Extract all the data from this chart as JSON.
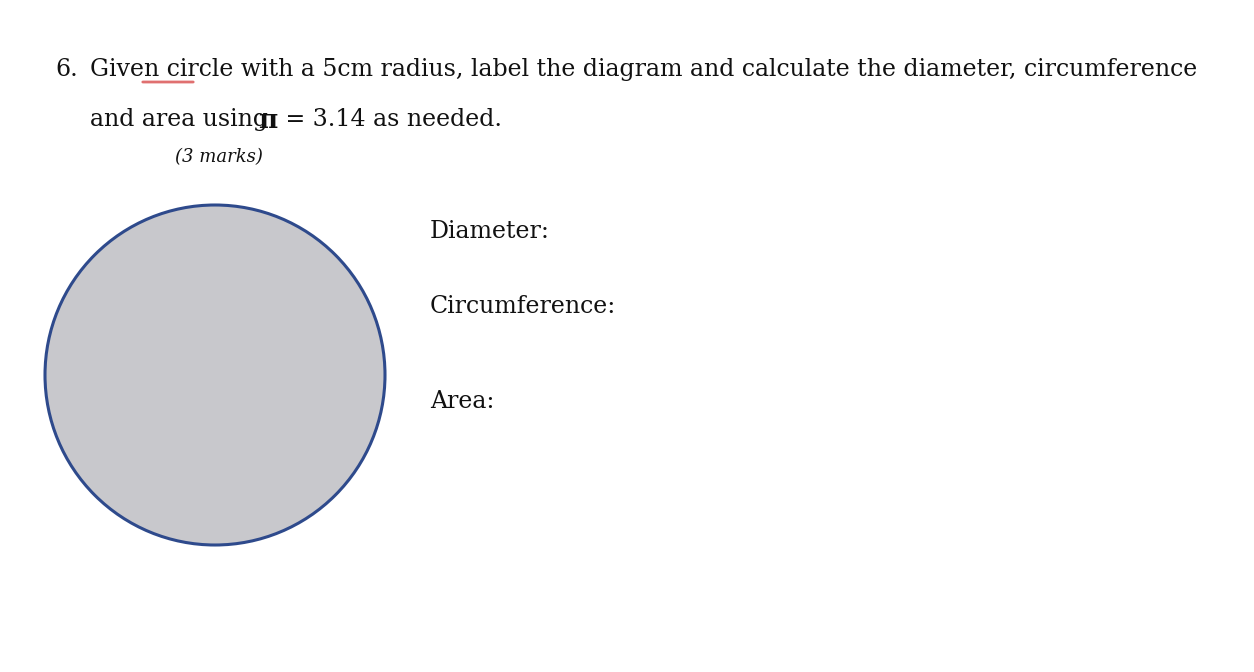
{
  "background_color": "#ffffff",
  "question_number": "6.",
  "line1": "Given circle with a 5cm radius, label the diagram and calculate the diameter, circumference",
  "line2": "and area using π = 3.14 as needed.",
  "marks": "(3 marks)",
  "label_diameter": "Diameter:",
  "label_circumference": "Circumference:",
  "label_area": "Area:",
  "circle_fill": "#c8c8cc",
  "circle_edge": "#2e4a8c",
  "font_size_main": 17,
  "font_size_marks": 13,
  "font_size_labels": 17,
  "underline_color": "#e07070",
  "text_color": "#111111",
  "fig_width": 12.54,
  "fig_height": 6.72,
  "dpi": 100
}
